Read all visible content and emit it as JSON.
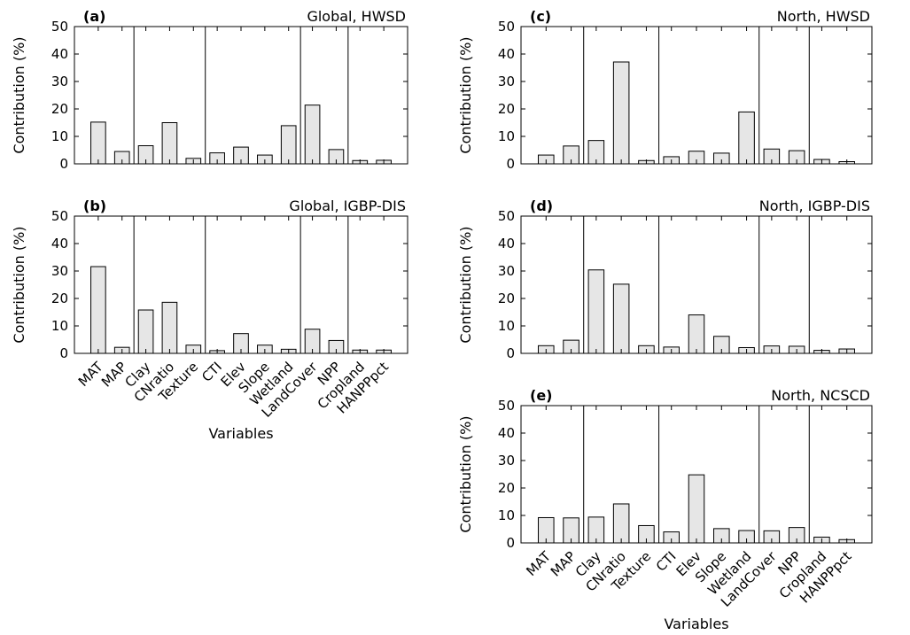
{
  "chart_data": [
    {
      "type": "bar",
      "panel": "(a)",
      "title": "Global, HWSD",
      "ylabel": "Contribution (%)",
      "xlabel": "",
      "ylim": [
        0,
        50
      ],
      "yticks": [
        0,
        10,
        20,
        30,
        40,
        50
      ],
      "categories": [
        "MAT",
        "MAP",
        "Clay",
        "CNratio",
        "Texture",
        "CTI",
        "Elev",
        "Slope",
        "Wetland",
        "LandCover",
        "NPP",
        "Cropland",
        "HANPPpct"
      ],
      "values": [
        15.2,
        4.5,
        6.6,
        15.0,
        2.0,
        4.0,
        6.1,
        3.2,
        13.9,
        21.4,
        5.2,
        1.2,
        1.3
      ],
      "group_separators_after_index": [
        1,
        4,
        8,
        10
      ]
    },
    {
      "type": "bar",
      "panel": "(b)",
      "title": "Global, IGBP-DIS",
      "ylabel": "Contribution (%)",
      "xlabel": "Variables",
      "ylim": [
        0,
        50
      ],
      "yticks": [
        0,
        10,
        20,
        30,
        40,
        50
      ],
      "categories": [
        "MAT",
        "MAP",
        "Clay",
        "CNratio",
        "Texture",
        "CTI",
        "Elev",
        "Slope",
        "Wetland",
        "LandCover",
        "NPP",
        "Cropland",
        "HANPPpct"
      ],
      "values": [
        31.6,
        2.2,
        15.8,
        18.6,
        3.0,
        1.0,
        7.2,
        3.0,
        1.5,
        8.8,
        4.7,
        1.2,
        1.2
      ],
      "group_separators_after_index": [
        1,
        4,
        8,
        10
      ]
    },
    {
      "type": "bar",
      "panel": "(c)",
      "title": "North, HWSD",
      "ylabel": "Contribution (%)",
      "xlabel": "",
      "ylim": [
        0,
        50
      ],
      "yticks": [
        0,
        10,
        20,
        30,
        40,
        50
      ],
      "categories": [
        "MAT",
        "MAP",
        "Clay",
        "CNratio",
        "Texture",
        "CTI",
        "Elev",
        "Slope",
        "Wetland",
        "LandCover",
        "NPP",
        "Cropland",
        "HANPPpct"
      ],
      "values": [
        3.2,
        6.5,
        8.5,
        37.1,
        1.2,
        2.6,
        4.6,
        3.9,
        18.9,
        5.4,
        4.8,
        1.6,
        0.8
      ],
      "group_separators_after_index": [
        1,
        4,
        8,
        10
      ]
    },
    {
      "type": "bar",
      "panel": "(d)",
      "title": "North, IGBP-DIS",
      "ylabel": "Contribution (%)",
      "xlabel": "",
      "ylim": [
        0,
        50
      ],
      "yticks": [
        0,
        10,
        20,
        30,
        40,
        50
      ],
      "categories": [
        "MAT",
        "MAP",
        "Clay",
        "CNratio",
        "Texture",
        "CTI",
        "Elev",
        "Slope",
        "Wetland",
        "LandCover",
        "NPP",
        "Cropland",
        "HANPPpct"
      ],
      "values": [
        2.8,
        4.8,
        30.4,
        25.2,
        2.8,
        2.3,
        14.0,
        6.2,
        2.1,
        2.7,
        2.6,
        1.1,
        1.6
      ],
      "group_separators_after_index": [
        1,
        4,
        8,
        10
      ]
    },
    {
      "type": "bar",
      "panel": "(e)",
      "title": "North, NCSCD",
      "ylabel": "Contribution (%)",
      "xlabel": "Variables",
      "ylim": [
        0,
        50
      ],
      "yticks": [
        0,
        10,
        20,
        30,
        40,
        50
      ],
      "categories": [
        "MAT",
        "MAP",
        "Clay",
        "CNratio",
        "Texture",
        "CTI",
        "Elev",
        "Slope",
        "Wetland",
        "LandCover",
        "NPP",
        "Cropland",
        "HANPPpct"
      ],
      "values": [
        9.2,
        9.1,
        9.4,
        14.2,
        6.3,
        4.0,
        24.8,
        5.2,
        4.5,
        4.4,
        5.6,
        2.1,
        1.2
      ],
      "group_separators_after_index": [
        1,
        4,
        8,
        10
      ]
    }
  ]
}
